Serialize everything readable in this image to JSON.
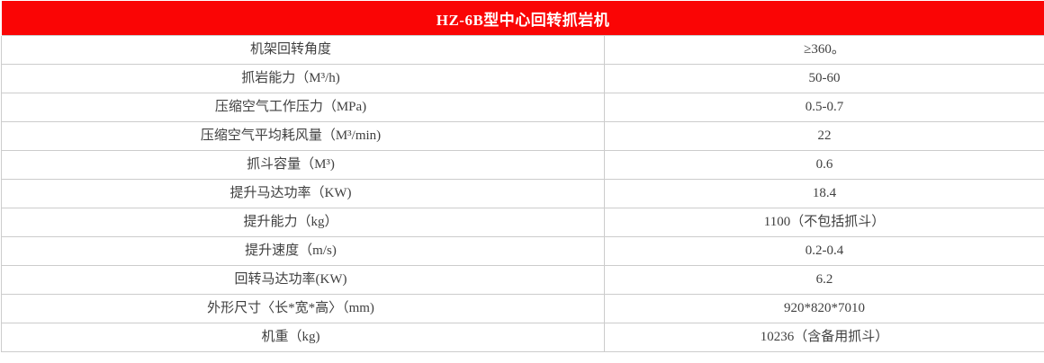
{
  "title": "HZ-6B型中心回转抓岩机",
  "colors": {
    "header_bg": "#fa0505",
    "header_text": "#ffffff",
    "border": "#cccccc",
    "cell_bg": "#ffffff",
    "text": "#404040"
  },
  "specs": [
    {
      "label": "机架回转角度",
      "value": "≥360。"
    },
    {
      "label": "抓岩能力（M³/h)",
      "value": "50-60"
    },
    {
      "label": "压缩空气工作压力（MPa)",
      "value": "0.5-0.7"
    },
    {
      "label": "压缩空气平均耗风量（M³/min)",
      "value": "22"
    },
    {
      "label": "抓斗容量（M³)",
      "value": "0.6"
    },
    {
      "label": "提升马达功率（KW)",
      "value": "18.4"
    },
    {
      "label": "提升能力（kg）",
      "value": "1100（不包括抓斗）"
    },
    {
      "label": "提升速度（m/s)",
      "value": "0.2-0.4"
    },
    {
      "label": "回转马达功率(KW)",
      "value": "6.2"
    },
    {
      "label": "外形尺寸〈长*宽*高〉（mm)",
      "value": "920*820*7010"
    },
    {
      "label": "机重（kg)",
      "value": "10236（含备用抓斗）"
    }
  ]
}
